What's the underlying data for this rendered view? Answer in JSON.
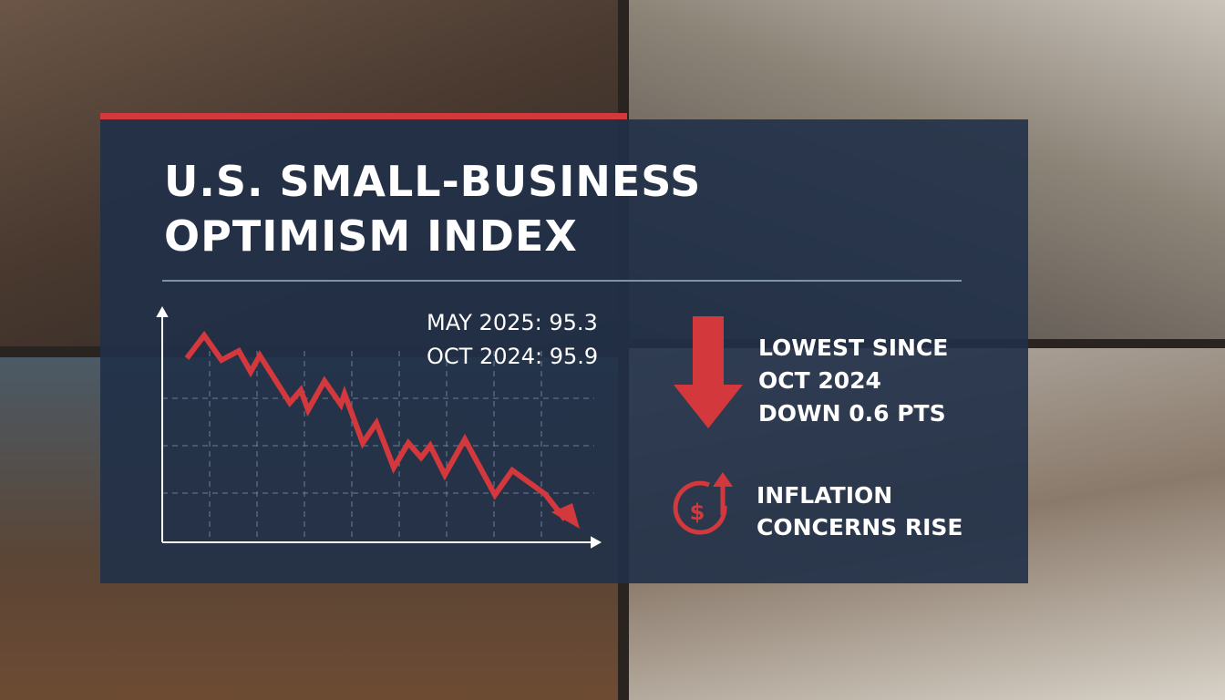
{
  "title": [
    "U.S. SMALL-BUSINESS",
    "OPTIMISM INDEX"
  ],
  "stats": [
    "MAY 2025: 95.3",
    "OCT 2024: 95.9"
  ],
  "callout": [
    "LOWEST SINCE",
    "OCT 2024",
    "DOWN 0.6 PTS"
  ],
  "inflation": [
    "INFLATION",
    "CONCERNS RISE"
  ]
}
